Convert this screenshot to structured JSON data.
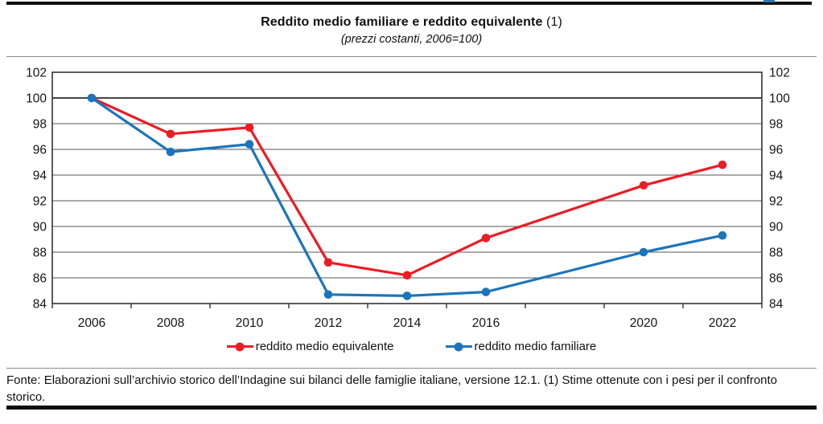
{
  "page": {
    "blue_fragment_color": "#2e74b5"
  },
  "header": {
    "title": "Reddito medio familiare e reddito equivalente",
    "title_note": "(1)",
    "subtitle": "(prezzi costanti, 2006=100)"
  },
  "chart_data": {
    "type": "line",
    "title": "Reddito medio familiare e reddito equivalente (1)",
    "subtitle": "(prezzi costanti, 2006=100)",
    "x": [
      2006,
      2008,
      2010,
      2012,
      2014,
      2016,
      2020,
      2022
    ],
    "series": [
      {
        "name": "reddito medio equivalente",
        "color": "#ed1c24",
        "values": [
          100,
          97.2,
          97.7,
          87.2,
          86.2,
          89.1,
          93.2,
          94.8
        ]
      },
      {
        "name": "reddito medio familiare",
        "color": "#1b75bc",
        "values": [
          100,
          95.8,
          96.4,
          84.7,
          84.6,
          84.9,
          88.0,
          89.3
        ]
      }
    ],
    "xlim": [
      2005,
      2023
    ],
    "ylim": [
      84,
      102
    ],
    "y_ticks": [
      84,
      86,
      88,
      90,
      92,
      94,
      96,
      98,
      100,
      102
    ],
    "x_axis_minor_ticks": [
      2005,
      2007,
      2009,
      2011,
      2013,
      2015,
      2017,
      2019,
      2021,
      2023
    ],
    "reference_line": 100,
    "grid": "horizontal",
    "y_axis_labels_both_sides": true,
    "legend_position": "bottom"
  },
  "footer": {
    "text": "Fonte: Elaborazioni sull’archivio storico dell’Indagine sui bilanci delle famiglie italiane, versione 12.1. (1) Stime ottenute con i pesi per il confronto storico."
  }
}
